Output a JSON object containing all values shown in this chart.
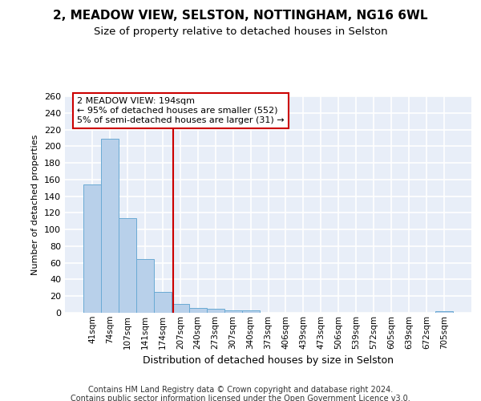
{
  "title1": "2, MEADOW VIEW, SELSTON, NOTTINGHAM, NG16 6WL",
  "title2": "Size of property relative to detached houses in Selston",
  "xlabel": "Distribution of detached houses by size in Selston",
  "ylabel": "Number of detached properties",
  "footnote1": "Contains HM Land Registry data © Crown copyright and database right 2024.",
  "footnote2": "Contains public sector information licensed under the Open Government Licence v3.0.",
  "bar_labels": [
    "41sqm",
    "74sqm",
    "107sqm",
    "141sqm",
    "174sqm",
    "207sqm",
    "240sqm",
    "273sqm",
    "307sqm",
    "340sqm",
    "373sqm",
    "406sqm",
    "439sqm",
    "473sqm",
    "506sqm",
    "539sqm",
    "572sqm",
    "605sqm",
    "639sqm",
    "672sqm",
    "705sqm"
  ],
  "bar_values": [
    154,
    209,
    114,
    65,
    25,
    11,
    6,
    5,
    3,
    3,
    0,
    0,
    0,
    0,
    0,
    0,
    0,
    0,
    0,
    0,
    2
  ],
  "bar_color": "#b8d0ea",
  "bar_edge_color": "#6aaad4",
  "background_color": "#e8eef8",
  "grid_color": "#ffffff",
  "vline_color": "#cc0000",
  "annotation_text": "2 MEADOW VIEW: 194sqm\n← 95% of detached houses are smaller (552)\n5% of semi-detached houses are larger (31) →",
  "annotation_box_color": "#ffffff",
  "annotation_box_edge_color": "#cc0000",
  "ylim": [
    0,
    260
  ],
  "yticks": [
    0,
    20,
    40,
    60,
    80,
    100,
    120,
    140,
    160,
    180,
    200,
    220,
    240,
    260
  ]
}
